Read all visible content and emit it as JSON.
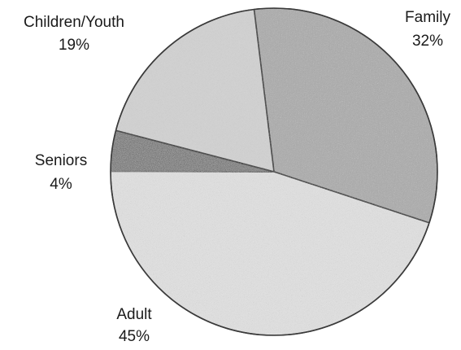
{
  "chart_data": {
    "type": "pie",
    "title": "",
    "start_angle_deg": -7,
    "direction": "clockwise",
    "slices": [
      {
        "label": "Family",
        "percent_label": "32%",
        "value": 32,
        "fill": "#ababab",
        "texture": "grain-medium"
      },
      {
        "label": "Adult",
        "percent_label": "45%",
        "value": 45,
        "fill": "#e1e1e1",
        "texture": "grain-fine"
      },
      {
        "label": "Seniors",
        "percent_label": "4%",
        "value": 4,
        "fill": "#5a5a5a",
        "texture": "grain-dark"
      },
      {
        "label": "Children/Youth",
        "percent_label": "19%",
        "value": 19,
        "fill": "#d2d2d2",
        "texture": "grain-light"
      }
    ],
    "legend": "none"
  }
}
